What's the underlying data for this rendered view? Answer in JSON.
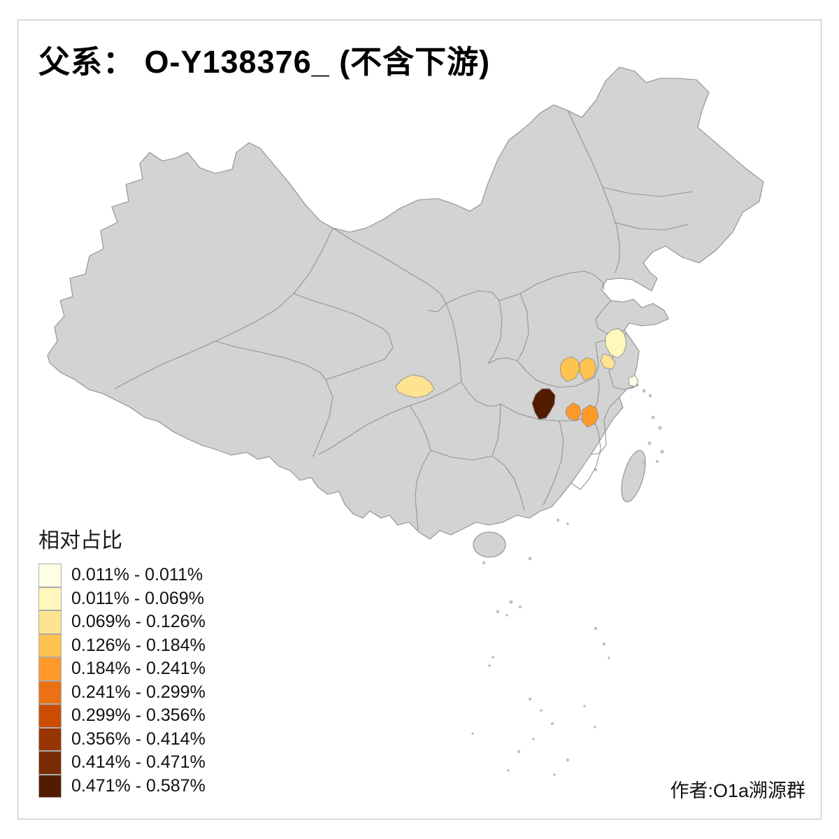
{
  "title": "父系： O-Y138376_ (不含下游)",
  "credit": "作者:O1a溯源群",
  "legend": {
    "title": "相对占比",
    "classes": [
      {
        "label": "0.011% - 0.011%",
        "color": "#FFFFE5"
      },
      {
        "label": "0.011% - 0.069%",
        "color": "#FFF7BC"
      },
      {
        "label": "0.069% - 0.126%",
        "color": "#FEE391"
      },
      {
        "label": "0.126% - 0.184%",
        "color": "#FEC44F"
      },
      {
        "label": "0.184% - 0.241%",
        "color": "#FE9929"
      },
      {
        "label": "0.241% - 0.299%",
        "color": "#EC7014"
      },
      {
        "label": "0.299% - 0.356%",
        "color": "#CC4C02"
      },
      {
        "label": "0.356% - 0.414%",
        "color": "#993404"
      },
      {
        "label": "0.414% - 0.471%",
        "color": "#7A2B04"
      },
      {
        "label": "0.471% - 0.587%",
        "color": "#521C01"
      }
    ]
  },
  "map": {
    "base_fill": "#D3D3D3",
    "border_color": "#8F8F8F",
    "background": "#FFFFFF",
    "highlighted_regions": [
      {
        "id": "sichuan-pale-yellow",
        "color": "#FEE391"
      },
      {
        "id": "henan-orange-west",
        "color": "#FEC44F"
      },
      {
        "id": "henan-orange-east",
        "color": "#FEC44F"
      },
      {
        "id": "jiangsu-pale-yellow-north",
        "color": "#FFF7BC"
      },
      {
        "id": "jiangsu-light-yellow-south",
        "color": "#FEE391"
      },
      {
        "id": "shanghai-cream",
        "color": "#FFFFE5"
      },
      {
        "id": "hubei-dark-brown",
        "color": "#521C01"
      },
      {
        "id": "hubei-southeast-orange",
        "color": "#FE9929"
      },
      {
        "id": "hunan-northeast-orange",
        "color": "#FE9929"
      }
    ]
  }
}
